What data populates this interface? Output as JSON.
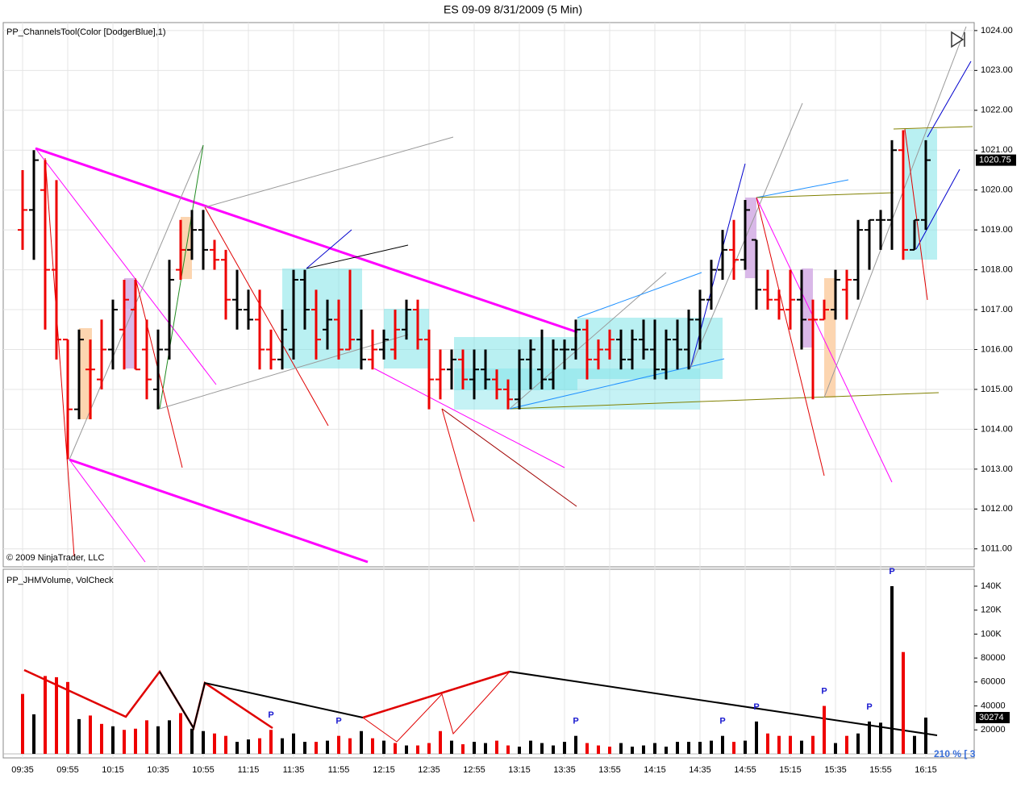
{
  "chart_data": [
    {
      "type": "ohlc",
      "title": "ES 09-09  8/31/2009 (5 Min)",
      "indicator_label": "PP_ChannelsTool(Color [DodgerBlue],1)",
      "copyright": "© 2009 NinjaTrader, LLC",
      "ylim": [
        1010.55,
        1024.2
      ],
      "yticks": [
        {
          "value": 1011,
          "label": "1011.00"
        },
        {
          "value": 1012,
          "label": "1012.00"
        },
        {
          "value": 1013,
          "label": "1013.00"
        },
        {
          "value": 1014,
          "label": "1014.00"
        },
        {
          "value": 1015,
          "label": "1015.00"
        },
        {
          "value": 1016,
          "label": "1016.00"
        },
        {
          "value": 1017,
          "label": "1017.00"
        },
        {
          "value": 1018,
          "label": "1018.00"
        },
        {
          "value": 1019,
          "label": "1019.00"
        },
        {
          "value": 1020,
          "label": "1020.00"
        },
        {
          "value": 1021,
          "label": "1021.00"
        },
        {
          "value": 1022,
          "label": "1022.00"
        },
        {
          "value": 1023,
          "label": "1023.00"
        },
        {
          "value": 1024,
          "label": "1024.00"
        }
      ],
      "grid": true,
      "ohlc": [
        [
          1019,
          1020.5,
          1018.5,
          1019.5
        ],
        [
          1019.5,
          1021,
          1018.25,
          1020.75
        ],
        [
          1020,
          1020.75,
          1016.5,
          1018
        ],
        [
          1018,
          1020.25,
          1015.75,
          1016.25
        ],
        [
          1016.25,
          1016.25,
          1013.25,
          1014.5
        ],
        [
          1014.5,
          1016.5,
          1014.25,
          1016.25
        ],
        [
          1015.5,
          1016.25,
          1014.25,
          1015.5
        ],
        [
          1015.25,
          1016.75,
          1015,
          1016
        ],
        [
          1016,
          1017.25,
          1015.5,
          1017
        ],
        [
          1016.5,
          1017.75,
          1015.5,
          1017.25
        ],
        [
          1017,
          1017.75,
          1015.5,
          1015.5
        ],
        [
          1016,
          1016.75,
          1014.75,
          1015.25
        ],
        [
          1015,
          1016.5,
          1014.5,
          1016
        ],
        [
          1016,
          1018.25,
          1015.75,
          1017.75
        ],
        [
          1018,
          1019.25,
          1017.75,
          1018.5
        ],
        [
          1018.5,
          1019.5,
          1018.25,
          1019
        ],
        [
          1019,
          1019.5,
          1018,
          1018.5
        ],
        [
          1018.5,
          1018.75,
          1018,
          1018.25
        ],
        [
          1018.25,
          1018.5,
          1016.75,
          1017.25
        ],
        [
          1017.25,
          1018,
          1016.5,
          1017
        ],
        [
          1017,
          1017.5,
          1016.5,
          1016.75
        ],
        [
          1016.75,
          1017.5,
          1015.5,
          1016
        ],
        [
          1016,
          1016.5,
          1015.5,
          1015.75
        ],
        [
          1015.75,
          1017,
          1015.5,
          1016.5
        ],
        [
          1016,
          1018,
          1015.75,
          1017.75
        ],
        [
          1017.75,
          1018,
          1016.5,
          1017
        ],
        [
          1017,
          1017.5,
          1015.75,
          1016.25
        ],
        [
          1016.5,
          1017.25,
          1016,
          1016.75
        ],
        [
          1016.75,
          1017.25,
          1015.75,
          1016
        ],
        [
          1016,
          1018,
          1016,
          1016.25
        ],
        [
          1016.25,
          1017,
          1015.5,
          1015.75
        ],
        [
          1015.75,
          1016.5,
          1015.5,
          1016
        ],
        [
          1016,
          1016.5,
          1015.75,
          1016.25
        ],
        [
          1016,
          1017,
          1015.75,
          1016.5
        ],
        [
          1016.5,
          1017.25,
          1016.25,
          1017
        ],
        [
          1017,
          1017.25,
          1016,
          1016.25
        ],
        [
          1016.25,
          1016.5,
          1014.5,
          1015.25
        ],
        [
          1015.25,
          1016,
          1014.75,
          1015.5
        ],
        [
          1015.5,
          1016,
          1015,
          1015.75
        ],
        [
          1015.75,
          1016,
          1015,
          1015.25
        ],
        [
          1015.25,
          1016,
          1014.75,
          1015.5
        ],
        [
          1015.5,
          1016,
          1015,
          1015.25
        ],
        [
          1015.25,
          1015.5,
          1014.75,
          1015
        ],
        [
          1015,
          1015.25,
          1014.5,
          1014.75
        ],
        [
          1014.75,
          1016,
          1014.5,
          1015.75
        ],
        [
          1015.75,
          1016.25,
          1015,
          1016
        ],
        [
          1015.5,
          1016.5,
          1015,
          1015.25
        ],
        [
          1015.25,
          1016.25,
          1015,
          1016
        ],
        [
          1016,
          1016.25,
          1015.5,
          1016
        ],
        [
          1016,
          1016.75,
          1015.75,
          1016.5
        ],
        [
          1016.5,
          1016.75,
          1015.25,
          1015.75
        ],
        [
          1015.75,
          1016.25,
          1015.5,
          1016
        ],
        [
          1016,
          1016.5,
          1015.75,
          1016.25
        ],
        [
          1016.25,
          1016.5,
          1015.5,
          1015.75
        ],
        [
          1015.75,
          1016.5,
          1015.5,
          1016.25
        ],
        [
          1016.25,
          1016.75,
          1015.75,
          1016
        ],
        [
          1016,
          1016.75,
          1015.25,
          1015.5
        ],
        [
          1015.5,
          1016.5,
          1015.25,
          1016.25
        ],
        [
          1016.25,
          1016.75,
          1015.5,
          1016
        ],
        [
          1016,
          1017,
          1015.5,
          1016.75
        ],
        [
          1016.75,
          1017.5,
          1016,
          1017.25
        ],
        [
          1017.25,
          1018.25,
          1017,
          1018
        ],
        [
          1018,
          1019,
          1017.75,
          1018.5
        ],
        [
          1018.5,
          1019.25,
          1017.75,
          1018.25
        ],
        [
          1018.25,
          1019.75,
          1018,
          1019.5
        ],
        [
          1018.75,
          1018.75,
          1017,
          1017.5
        ],
        [
          1017.5,
          1018,
          1017,
          1017.25
        ],
        [
          1017.25,
          1017.5,
          1016.75,
          1017
        ],
        [
          1017,
          1018,
          1016.5,
          1017.25
        ],
        [
          1017.25,
          1018,
          1016,
          1016.75
        ],
        [
          1016.75,
          1017.25,
          1014.75,
          1016.75
        ],
        [
          1016.75,
          1017.25,
          1016.75,
          1017
        ],
        [
          1017,
          1018,
          1016.75,
          1017.75
        ],
        [
          1017.5,
          1018,
          1016.75,
          1017.75
        ],
        [
          1017.75,
          1019.25,
          1017.25,
          1019
        ],
        [
          1019,
          1019.25,
          1018,
          1019.25
        ],
        [
          1019.25,
          1019.5,
          1018.5,
          1019.25
        ],
        [
          1019.25,
          1021.25,
          1018.5,
          1021
        ],
        [
          1021,
          1021.5,
          1018.25,
          1018.5
        ],
        [
          1018.5,
          1019.25,
          1018.5,
          1019.25
        ],
        [
          1019.25,
          1021.25,
          1019,
          1020.75
        ]
      ],
      "bar_colors": [
        "#e00",
        "#000",
        "#e00",
        "#e00",
        "#e00",
        "#000",
        "#e00",
        "#e00",
        "#000",
        "#e00",
        "#e00",
        "#e00",
        "#000",
        "#000",
        "#e00",
        "#000",
        "#000",
        "#e00",
        "#e00",
        "#000",
        "#000",
        "#e00",
        "#e00",
        "#000",
        "#000",
        "#000",
        "#e00",
        "#000",
        "#e00",
        "#e00",
        "#000",
        "#e00",
        "#000",
        "#e00",
        "#000",
        "#e00",
        "#e00",
        "#e00",
        "#000",
        "#e00",
        "#000",
        "#000",
        "#e00",
        "#e00",
        "#000",
        "#000",
        "#000",
        "#000",
        "#000",
        "#000",
        "#e00",
        "#e00",
        "#e00",
        "#000",
        "#000",
        "#000",
        "#000",
        "#000",
        "#000",
        "#000",
        "#000",
        "#000",
        "#000",
        "#e00",
        "#000",
        "#000",
        "#e00",
        "#e00",
        "#e00",
        "#000",
        "#e00",
        "#e00",
        "#000",
        "#e00",
        "#000",
        "#000",
        "#000",
        "#000",
        "#e00",
        "#000",
        "#000"
      ]
    },
    {
      "type": "bar",
      "indicator_label": "PP_JHMVolume, VolCheck",
      "status_label": "210 % [ 3",
      "ylim": [
        -3400,
        152800
      ],
      "yticks": [
        20000,
        40000,
        60000,
        80000,
        {
          "value": 100000,
          "label": "100K"
        },
        {
          "value": 120000,
          "label": "120K"
        },
        {
          "value": 140000,
          "label": "140K"
        }
      ],
      "categories": [
        "09:35",
        null,
        null,
        null,
        "09:55",
        null,
        null,
        null,
        "10:15",
        null,
        null,
        null,
        "10:35",
        null,
        null,
        null,
        "10:55",
        null,
        null,
        null,
        "11:15",
        null,
        null,
        null,
        "11:35",
        null,
        null,
        null,
        "11:55",
        null,
        null,
        null,
        "12:15",
        null,
        null,
        null,
        "12:35",
        null,
        null,
        null,
        "12:55",
        null,
        null,
        null,
        "13:15",
        null,
        null,
        null,
        "13:35",
        null,
        null,
        null,
        "13:55",
        null,
        null,
        null,
        "14:15",
        null,
        null,
        null,
        "14:35",
        null,
        null,
        null,
        "14:55",
        null,
        null,
        null,
        "15:15",
        null,
        null,
        null,
        "15:35",
        null,
        null,
        null,
        "15:55",
        null,
        null,
        null,
        "16:15"
      ],
      "values": [
        50000,
        33000,
        65000,
        64000,
        60000,
        29000,
        32000,
        25000,
        23000,
        20000,
        21000,
        28000,
        23000,
        28000,
        34000,
        21000,
        19000,
        17000,
        15000,
        10000,
        12000,
        13000,
        20000,
        13000,
        17000,
        10000,
        10000,
        11000,
        15000,
        13000,
        19000,
        13000,
        11000,
        9000,
        7000,
        7000,
        9000,
        19000,
        11000,
        8000,
        10000,
        9000,
        11000,
        7000,
        6000,
        11000,
        9000,
        7000,
        10000,
        15000,
        9000,
        7000,
        6000,
        9000,
        6000,
        7000,
        9000,
        6000,
        10000,
        10000,
        10000,
        11000,
        15000,
        10000,
        11000,
        27000,
        17000,
        15000,
        15000,
        11000,
        15000,
        40000,
        9000,
        15000,
        17000,
        27000,
        26000,
        140000,
        85000,
        15000,
        30274
      ],
      "markers": [
        null,
        null,
        null,
        null,
        null,
        null,
        null,
        null,
        null,
        null,
        null,
        null,
        null,
        null,
        null,
        null,
        null,
        null,
        null,
        null,
        null,
        null,
        "P",
        null,
        null,
        null,
        null,
        null,
        "P",
        null,
        null,
        null,
        null,
        null,
        null,
        null,
        null,
        null,
        null,
        null,
        null,
        null,
        null,
        null,
        null,
        null,
        null,
        null,
        null,
        "P",
        null,
        null,
        null,
        null,
        null,
        null,
        null,
        null,
        null,
        null,
        null,
        null,
        "P",
        null,
        null,
        "P",
        null,
        null,
        null,
        null,
        null,
        "P",
        null,
        null,
        null,
        "P",
        null,
        "P",
        null,
        null,
        null
      ]
    }
  ]
}
